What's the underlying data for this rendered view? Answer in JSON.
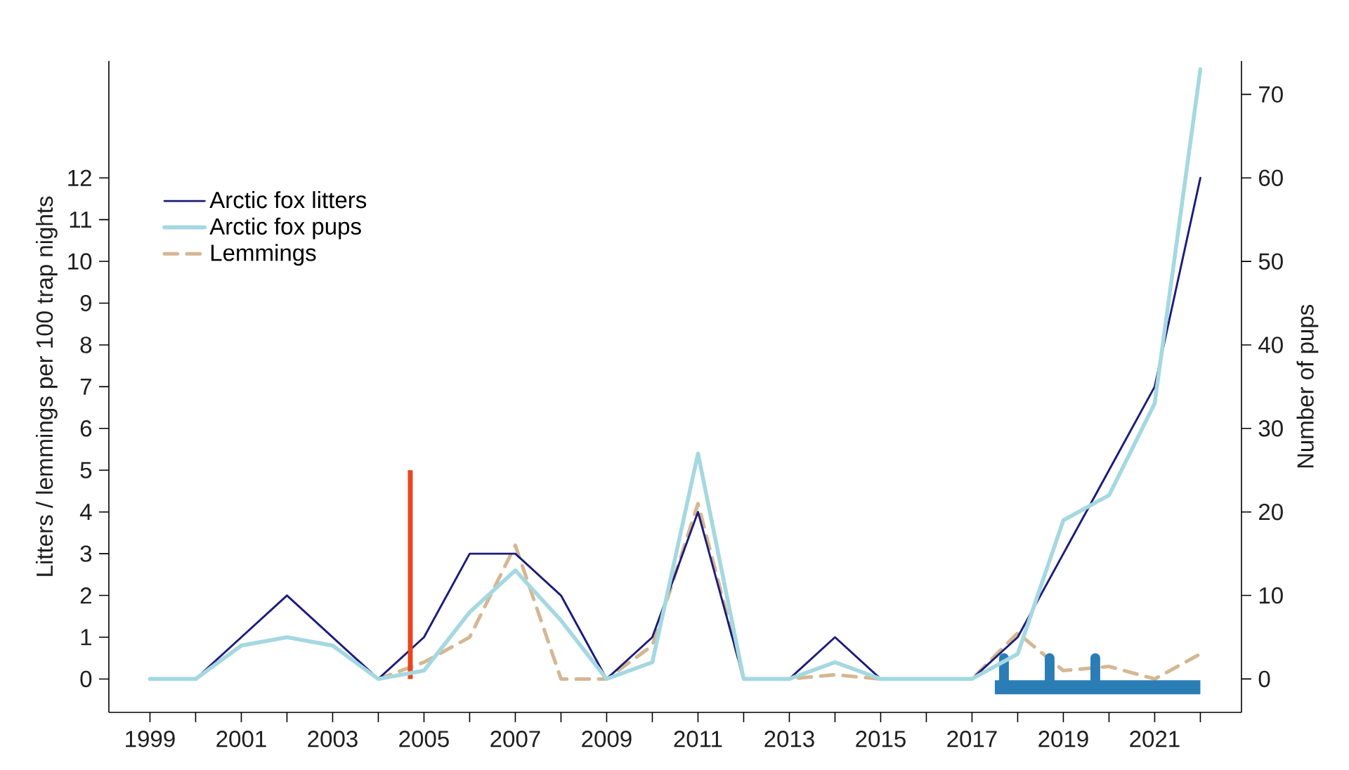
{
  "chart_data": {
    "type": "line",
    "ylabel": "Litters / lemmings per 100 trap nights",
    "y2label": "Number of pups",
    "x": [
      1999,
      2000,
      2001,
      2002,
      2003,
      2004,
      2005,
      2006,
      2007,
      2008,
      2009,
      2010,
      2011,
      2012,
      2013,
      2014,
      2015,
      2016,
      2017,
      2018,
      2019,
      2020,
      2021,
      2022
    ],
    "xlim": [
      1998.1,
      2022.9
    ],
    "xticks": [
      1999,
      {
        "value": 2000,
        "label": null
      },
      2001,
      {
        "value": 2002,
        "label": null
      },
      2003,
      {
        "value": 2004,
        "label": null
      },
      2005,
      {
        "value": 2006,
        "label": null
      },
      2007,
      {
        "value": 2008,
        "label": null
      },
      2009,
      {
        "value": 2010,
        "label": null
      },
      2011,
      {
        "value": 2012,
        "label": null
      },
      2013,
      {
        "value": 2014,
        "label": null
      },
      2015,
      {
        "value": 2016,
        "label": null
      },
      2017,
      {
        "value": 2018,
        "label": null
      },
      2019,
      {
        "value": 2020,
        "label": null
      },
      2021,
      {
        "value": 2022,
        "label": null
      }
    ],
    "ylim": [
      -0.8,
      14.8
    ],
    "yticks": [
      0,
      1,
      2,
      3,
      4,
      5,
      6,
      7,
      8,
      9,
      10,
      11,
      12
    ],
    "y2lim": [
      -4,
      74
    ],
    "y2ticks": [
      0,
      10,
      20,
      30,
      40,
      50,
      60,
      70
    ],
    "legend": "top left",
    "series": [
      {
        "name": "Arctic fox litters",
        "color": "#1c1c7c",
        "values": [
          0,
          0,
          1,
          2,
          1,
          0,
          1,
          3,
          3,
          2,
          0,
          1,
          4,
          0,
          0,
          1,
          0,
          0,
          0,
          1,
          3,
          5,
          7,
          12
        ]
      },
      {
        "name": "Arctic fox pups",
        "color": "#a5d8e0",
        "axis": "y2",
        "values": [
          0,
          0,
          4,
          5,
          4,
          0,
          1,
          8,
          13,
          7,
          0,
          2,
          27,
          0,
          0,
          2,
          0,
          0,
          0,
          3,
          19,
          22,
          33,
          73
        ]
      },
      {
        "name": "Lemmings",
        "color": "#d4b792",
        "line_style": "dashed",
        "values": [
          null,
          null,
          null,
          null,
          null,
          0,
          0.4,
          1.0,
          3.2,
          0,
          0,
          0.8,
          4.2,
          0,
          0,
          0.1,
          0,
          0,
          0,
          1.1,
          0.2,
          0.3,
          0,
          0.6
        ]
      },
      {
        "color": "#e8461e",
        "x": [
          2004.7,
          2004.7
        ],
        "values": [
          0,
          5
        ]
      },
      {
        "color": "#2a7db5",
        "x": [
          2017.5,
          2022
        ],
        "values": [
          -0.2,
          -0.2
        ]
      },
      {
        "color": "#2a7db5",
        "x": [
          2017.7,
          2017.7
        ],
        "values": [
          -0.2,
          0.5
        ]
      },
      {
        "color": "#2a7db5",
        "x": [
          2018.7,
          2018.7
        ],
        "values": [
          -0.2,
          0.5
        ]
      },
      {
        "color": "#2a7db5",
        "x": [
          2019.7,
          2019.7
        ],
        "values": [
          -0.2,
          0.5
        ]
      }
    ]
  }
}
